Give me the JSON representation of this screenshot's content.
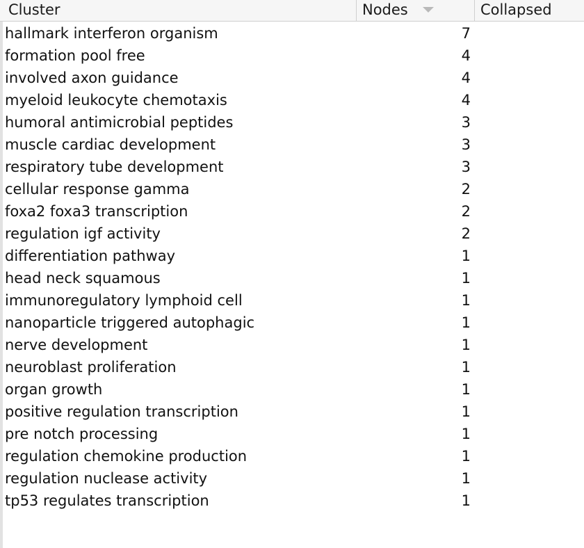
{
  "table": {
    "columns": {
      "cluster": "Cluster",
      "nodes": "Nodes",
      "collapsed": "Collapsed"
    },
    "sort": {
      "column": "Nodes",
      "direction": "descending",
      "icon": "sort-descending-icon"
    },
    "rows": [
      {
        "cluster": "hallmark interferon organism",
        "nodes": "7",
        "collapsed": ""
      },
      {
        "cluster": "formation pool free",
        "nodes": "4",
        "collapsed": ""
      },
      {
        "cluster": "involved axon guidance",
        "nodes": "4",
        "collapsed": ""
      },
      {
        "cluster": "myeloid leukocyte chemotaxis",
        "nodes": "4",
        "collapsed": ""
      },
      {
        "cluster": "humoral antimicrobial peptides",
        "nodes": "3",
        "collapsed": ""
      },
      {
        "cluster": "muscle cardiac development",
        "nodes": "3",
        "collapsed": ""
      },
      {
        "cluster": "respiratory tube development",
        "nodes": "3",
        "collapsed": ""
      },
      {
        "cluster": "cellular response gamma",
        "nodes": "2",
        "collapsed": ""
      },
      {
        "cluster": "foxa2 foxa3 transcription",
        "nodes": "2",
        "collapsed": ""
      },
      {
        "cluster": "regulation igf activity",
        "nodes": "2",
        "collapsed": ""
      },
      {
        "cluster": "differentiation pathway",
        "nodes": "1",
        "collapsed": ""
      },
      {
        "cluster": "head neck squamous",
        "nodes": "1",
        "collapsed": ""
      },
      {
        "cluster": "immunoregulatory lymphoid cell",
        "nodes": "1",
        "collapsed": ""
      },
      {
        "cluster": "nanoparticle triggered autophagic",
        "nodes": "1",
        "collapsed": ""
      },
      {
        "cluster": "nerve development",
        "nodes": "1",
        "collapsed": ""
      },
      {
        "cluster": "neuroblast proliferation",
        "nodes": "1",
        "collapsed": ""
      },
      {
        "cluster": "organ growth",
        "nodes": "1",
        "collapsed": ""
      },
      {
        "cluster": "positive regulation transcription",
        "nodes": "1",
        "collapsed": ""
      },
      {
        "cluster": "pre notch processing",
        "nodes": "1",
        "collapsed": ""
      },
      {
        "cluster": "regulation chemokine production",
        "nodes": "1",
        "collapsed": ""
      },
      {
        "cluster": "regulation nuclease activity",
        "nodes": "1",
        "collapsed": ""
      },
      {
        "cluster": "tp53 regulates transcription",
        "nodes": "1",
        "collapsed": ""
      }
    ]
  }
}
